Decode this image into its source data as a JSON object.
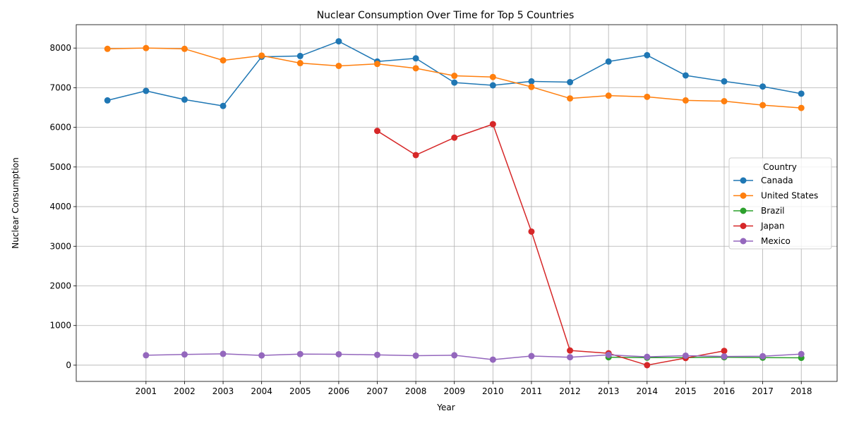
{
  "chart_data": {
    "type": "line",
    "title": "Nuclear Consumption Over Time for Top 5 Countries",
    "xlabel": "Year",
    "ylabel": "Nuclear Consumption",
    "x_ticks": [
      2001,
      2002,
      2003,
      2004,
      2005,
      2006,
      2007,
      2008,
      2009,
      2010,
      2011,
      2012,
      2013,
      2014,
      2015,
      2016,
      2017,
      2018
    ],
    "y_ticks": [
      0,
      1000,
      2000,
      3000,
      4000,
      5000,
      6000,
      7000,
      8000
    ],
    "xlim": [
      1999.19,
      2018.93
    ],
    "ylim": [
      -410,
      8590
    ],
    "grid": true,
    "legend": {
      "title": "Country",
      "placement": "center-right"
    },
    "series": [
      {
        "name": "Canada",
        "color": "#1f77b4",
        "x": [
          2000,
          2001,
          2002,
          2003,
          2004,
          2005,
          2006,
          2007,
          2008,
          2009,
          2010,
          2011,
          2012,
          2013,
          2014,
          2015,
          2016,
          2017,
          2018
        ],
        "y": [
          6680,
          6920,
          6700,
          6540,
          7780,
          7800,
          8170,
          7660,
          7740,
          7130,
          7060,
          7160,
          7140,
          7660,
          7820,
          7310,
          7160,
          7030,
          6850
        ]
      },
      {
        "name": "United States",
        "color": "#ff7f0e",
        "x": [
          2000,
          2001,
          2002,
          2003,
          2004,
          2005,
          2006,
          2007,
          2008,
          2009,
          2010,
          2011,
          2012,
          2013,
          2014,
          2015,
          2016,
          2017,
          2018
        ],
        "y": [
          7980,
          8000,
          7980,
          7690,
          7810,
          7620,
          7550,
          7600,
          7490,
          7300,
          7270,
          7020,
          6730,
          6800,
          6770,
          6680,
          6660,
          6560,
          6490
        ]
      },
      {
        "name": "Brazil",
        "color": "#2ca02c",
        "x": [
          2013,
          2014,
          2015,
          2016,
          2017,
          2018
        ],
        "y": [
          200,
          190,
          190,
          200,
          190,
          185
        ]
      },
      {
        "name": "Japan",
        "color": "#d62728",
        "x": [
          2007,
          2008,
          2009,
          2010,
          2011,
          2012,
          2013,
          2014,
          2015,
          2016
        ],
        "y": [
          5910,
          5300,
          5740,
          6080,
          3370,
          370,
          300,
          0,
          180,
          360
        ]
      },
      {
        "name": "Mexico",
        "color": "#9467bd",
        "x": [
          2001,
          2002,
          2003,
          2004,
          2005,
          2006,
          2007,
          2008,
          2009,
          2010,
          2011,
          2012,
          2013,
          2014,
          2015,
          2016,
          2017,
          2018
        ],
        "y": [
          250,
          270,
          285,
          245,
          280,
          275,
          260,
          240,
          250,
          140,
          230,
          200,
          260,
          210,
          240,
          220,
          225,
          280
        ]
      }
    ]
  }
}
